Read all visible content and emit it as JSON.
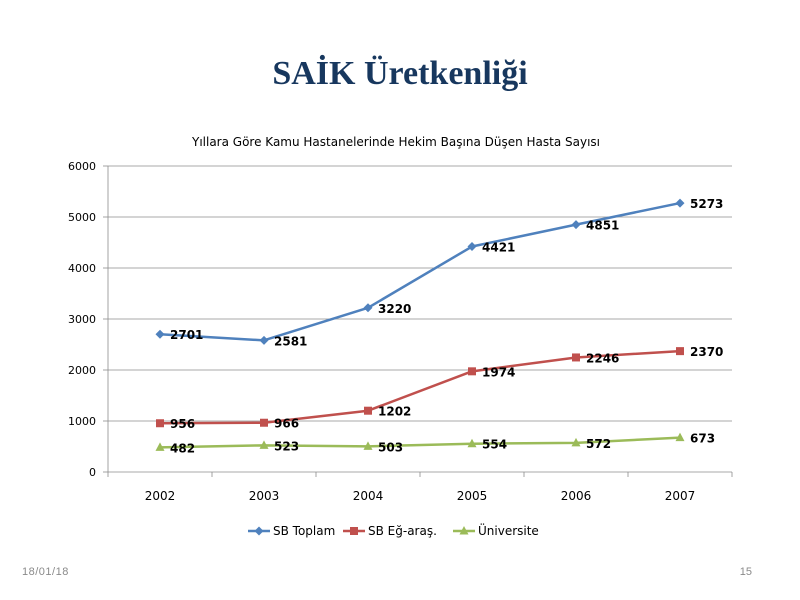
{
  "slide": {
    "title": "SAİK Üretkenliği",
    "footer_date": "18/01/18",
    "page_number": "15"
  },
  "chart_data": {
    "type": "line",
    "title": "Yıllara Göre Kamu Hastanelerinde Hekim Başına Düşen Hasta Sayısı",
    "xlabel": "",
    "ylabel": "",
    "categories": [
      "2002",
      "2003",
      "2004",
      "2005",
      "2006",
      "2007"
    ],
    "ylim": [
      0,
      6000
    ],
    "yticks": [
      0,
      1000,
      2000,
      3000,
      4000,
      5000,
      6000
    ],
    "grid": true,
    "legend_position": "bottom",
    "series": [
      {
        "name": "SB Toplam",
        "values": [
          2701,
          2581,
          3220,
          4421,
          4851,
          5273
        ],
        "color": "#4f81bd",
        "marker": "diamond"
      },
      {
        "name": "SB Eğ-araş.",
        "values": [
          956,
          966,
          1202,
          1974,
          2246,
          2370
        ],
        "color": "#c0504d",
        "marker": "square"
      },
      {
        "name": "Üniversite",
        "values": [
          482,
          523,
          503,
          554,
          572,
          673
        ],
        "color": "#9bbb59",
        "marker": "triangle"
      }
    ]
  }
}
